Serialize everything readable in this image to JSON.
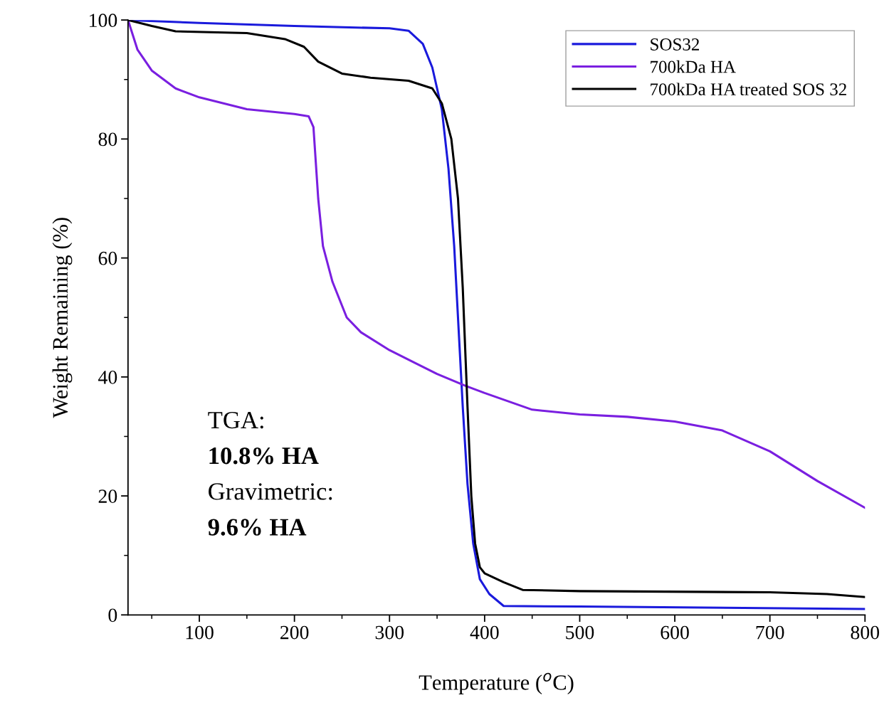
{
  "chart_data": {
    "type": "line",
    "xlabel": "Temperature ($^{o}$C)",
    "ylabel": "Weight Remaining (%)",
    "xlim": [
      25,
      800
    ],
    "xticks": [
      100,
      200,
      300,
      400,
      500,
      600,
      700,
      800
    ],
    "ylim": [
      0,
      100
    ],
    "yticks": [
      0,
      20,
      40,
      60,
      80,
      100
    ],
    "grid": false,
    "legend": "top right",
    "marker": "none",
    "line_style": "solid",
    "series": [
      {
        "name": "SOS32",
        "color": "#1a1adc",
        "x": [
          25,
          100,
          200,
          300,
          320,
          335,
          345,
          355,
          362,
          368,
          372,
          377,
          382,
          388,
          395,
          405,
          420,
          500,
          800
        ],
        "values": [
          100,
          99.5,
          99,
          98.6,
          98.2,
          96,
          92,
          85,
          75,
          62,
          50,
          35,
          22,
          12,
          6,
          3.5,
          1.5,
          1.4,
          1.0
        ]
      },
      {
        "name": "700kDa HA",
        "color": "#7a1fe0",
        "x": [
          25,
          35,
          50,
          75,
          100,
          150,
          200,
          215,
          220,
          225,
          230,
          240,
          255,
          270,
          300,
          350,
          380,
          400,
          450,
          500,
          550,
          600,
          650,
          700,
          750,
          800
        ],
        "values": [
          100,
          95,
          91.5,
          88.5,
          87,
          85,
          84.2,
          83.8,
          82,
          70,
          62,
          56,
          50,
          47.5,
          44.5,
          40.5,
          38.5,
          37.3,
          34.5,
          33.7,
          33.3,
          32.5,
          31,
          27.5,
          22.5,
          18
        ]
      },
      {
        "name": "700kDa HA treated SOS 32",
        "color": "#000000",
        "x": [
          25,
          50,
          75,
          150,
          190,
          210,
          225,
          250,
          280,
          320,
          345,
          355,
          365,
          372,
          377,
          382,
          386,
          390,
          395,
          400,
          420,
          440,
          500,
          700,
          760,
          800
        ],
        "values": [
          100,
          99,
          98.1,
          97.8,
          96.8,
          95.5,
          93,
          91,
          90.3,
          89.8,
          88.5,
          86,
          80,
          70,
          55,
          35,
          20,
          12,
          8,
          7,
          5.5,
          4.2,
          4.0,
          3.8,
          3.5,
          3.0
        ]
      }
    ],
    "annotations": [
      "TGA:",
      "10.8% HA",
      "Gravimetric:",
      "9.6% HA"
    ]
  }
}
